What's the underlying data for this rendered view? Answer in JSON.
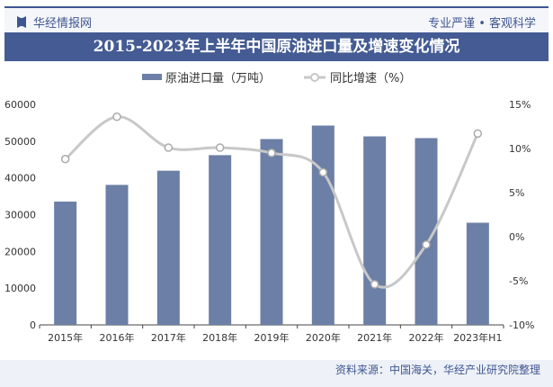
{
  "header": {
    "brand": "华经情报网",
    "slogan": "专业严谨 • 客观科学"
  },
  "title": "2015-2023年上半年中国原油进口量及增速变化情况",
  "source": "资料来源：中国海关，华经产业研究院整理",
  "colors": {
    "bar": "#6c7fa6",
    "line": "#c8c8c8",
    "accent": "#3e5690"
  },
  "chart_data": {
    "type": "bar+line",
    "categories": [
      "2015年",
      "2016年",
      "2017年",
      "2018年",
      "2019年",
      "2020年",
      "2021年",
      "2022年",
      "2023年H1"
    ],
    "series": [
      {
        "name": "原油进口量（万吨）",
        "type": "bar",
        "axis": "left",
        "values": [
          33550,
          38101,
          41957,
          46190,
          50572,
          54239,
          51298,
          50828,
          27800
        ]
      },
      {
        "name": "同比增速（%）",
        "type": "line",
        "axis": "right",
        "values": [
          8.8,
          13.6,
          10.1,
          10.1,
          9.5,
          7.3,
          -5.4,
          -0.9,
          11.7
        ]
      }
    ],
    "left_axis": {
      "ylim": [
        0,
        60000
      ],
      "ticks": [
        "0",
        "10000",
        "20000",
        "30000",
        "40000",
        "50000",
        "60000"
      ]
    },
    "right_axis": {
      "ylim": [
        -10,
        15
      ],
      "ticks": [
        "-10%",
        "-5%",
        "0%",
        "5%",
        "10%",
        "15%"
      ]
    },
    "legend_position": "top"
  }
}
